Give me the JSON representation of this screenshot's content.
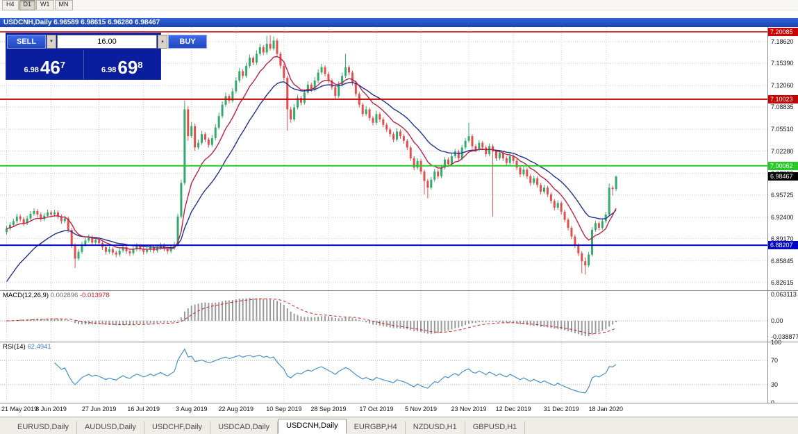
{
  "toolbar": {
    "timeframes": [
      "H4",
      "D1",
      "W1",
      "MN"
    ],
    "active": "D1"
  },
  "window": {
    "title": "USDCNH,Daily  6.96589 6.98615 6.96280 6.98467"
  },
  "trade_panel": {
    "sell_label": "SELL",
    "buy_label": "BUY",
    "volume": "16.00",
    "bid_main": "6.98",
    "bid_big": "46",
    "bid_sup": "7",
    "ask_main": "6.98",
    "ask_big": "69",
    "ask_sup": "8"
  },
  "chart": {
    "price_axis": [
      {
        "label": "7.18620",
        "value": 7.1862
      },
      {
        "label": "7.15390",
        "value": 7.1539
      },
      {
        "label": "7.12060",
        "value": 7.1206
      },
      {
        "label": "7.08835",
        "value": 7.08835
      },
      {
        "label": "7.05510",
        "value": 7.0551
      },
      {
        "label": "7.02280",
        "value": 7.0228
      },
      {
        "label": "6.98950",
        "value": 6.9895
      },
      {
        "label": "6.95725",
        "value": 6.95725
      },
      {
        "label": "6.92400",
        "value": 6.924
      },
      {
        "label": "6.89170",
        "value": 6.8917
      },
      {
        "label": "6.85845",
        "value": 6.85845
      },
      {
        "label": "6.82615",
        "value": 6.82615
      }
    ],
    "levels": [
      {
        "label": "7.20085",
        "value": 7.20085,
        "color": "#cc0000",
        "width": 1.5
      },
      {
        "label": "7.10023",
        "value": 7.10023,
        "color": "#c40000",
        "width": 2
      },
      {
        "label": "7.00062",
        "value": 7.00062,
        "color": "#22cc22",
        "width": 2
      },
      {
        "label": "6.88207",
        "value": 6.88207,
        "color": "#0000cc",
        "width": 2
      }
    ],
    "current_price": {
      "label": "6.98467",
      "value": 6.98467,
      "bg": "#000000"
    }
  },
  "indicators": {
    "macd": {
      "title": "MACD(12,26,9)",
      "value_main": "0.002896",
      "value_signal": "-0.013978",
      "axis": [
        {
          "label": "0.063113",
          "value": 0.063113
        },
        {
          "label": "0.00",
          "value": 0
        },
        {
          "label": "-0.038877",
          "value": -0.038877
        }
      ]
    },
    "rsi": {
      "title": "RSI(14)",
      "value": "62.4941",
      "axis": [
        {
          "label": "100",
          "value": 100
        },
        {
          "label": "70",
          "value": 70
        },
        {
          "label": "30",
          "value": 30
        },
        {
          "label": "0",
          "value": 0
        }
      ],
      "guides": [
        70,
        30
      ]
    }
  },
  "tabs": [
    {
      "label": "EURUSD,Daily",
      "active": false
    },
    {
      "label": "AUDUSD,Daily",
      "active": false
    },
    {
      "label": "USDCHF,Daily",
      "active": false
    },
    {
      "label": "USDCAD,Daily",
      "active": false
    },
    {
      "label": "USDCNH,Daily",
      "active": true
    },
    {
      "label": "EURGBP,H4",
      "active": false
    },
    {
      "label": "NZDUSD,H1",
      "active": false
    },
    {
      "label": "GBPUSD,H1",
      "active": false
    }
  ],
  "chart_data": {
    "type": "candlestick",
    "title": "USDCNH, Daily",
    "ylim": [
      6.8147,
      7.208
    ],
    "colors": {
      "up": "#33aa6c",
      "down": "#e04e4e",
      "ma_fast": "#bb2244",
      "ma_slow": "#20318f",
      "macd_hist": "#9a9a9a",
      "macd_signal": "#cc2222",
      "rsi_line": "#4a90c8",
      "grid": "#cfcfcf"
    },
    "x_labels": [
      {
        "text": "21 May 2019",
        "bar": 0
      },
      {
        "text": "8 Jun 2019",
        "bar": 13
      },
      {
        "text": "27 Jun 2019",
        "bar": 27
      },
      {
        "text": "16 Jul 2019",
        "bar": 40
      },
      {
        "text": "3 Aug 2019",
        "bar": 54
      },
      {
        "text": "22 Aug 2019",
        "bar": 67
      },
      {
        "text": "10 Sep 2019",
        "bar": 81
      },
      {
        "text": "28 Sep 2019",
        "bar": 94
      },
      {
        "text": "17 Oct 2019",
        "bar": 108
      },
      {
        "text": "5 Nov 2019",
        "bar": 121
      },
      {
        "text": "23 Nov 2019",
        "bar": 135
      },
      {
        "text": "12 Dec 2019",
        "bar": 148
      },
      {
        "text": "31 Dec 2019",
        "bar": 162
      },
      {
        "text": "18 Jan 2020",
        "bar": 175
      }
    ],
    "ohlc": [
      [
        6.902,
        6.911,
        6.898,
        6.907
      ],
      [
        6.907,
        6.9165,
        6.904,
        6.9125
      ],
      [
        6.9125,
        6.922,
        6.9095,
        6.918
      ],
      [
        6.918,
        6.929,
        6.915,
        6.925
      ],
      [
        6.925,
        6.928,
        6.917,
        6.921
      ],
      [
        6.921,
        6.924,
        6.911,
        6.915
      ],
      [
        6.915,
        6.926,
        6.912,
        6.922
      ],
      [
        6.922,
        6.933,
        6.919,
        6.929
      ],
      [
        6.929,
        6.937,
        6.926,
        6.933
      ],
      [
        6.933,
        6.936,
        6.924,
        6.928
      ],
      [
        6.928,
        6.931,
        6.917,
        6.921
      ],
      [
        6.921,
        6.93,
        6.918,
        6.926
      ],
      [
        6.926,
        6.935,
        6.923,
        6.931
      ],
      [
        6.931,
        6.934,
        6.924,
        6.928
      ],
      [
        6.928,
        6.935,
        6.925,
        6.931
      ],
      [
        6.931,
        6.934,
        6.921,
        6.925
      ],
      [
        6.925,
        6.928,
        6.914,
        6.918
      ],
      [
        6.918,
        6.926,
        6.915,
        6.922
      ],
      [
        6.922,
        6.925,
        6.901,
        6.905
      ],
      [
        6.905,
        6.908,
        6.878,
        6.882
      ],
      [
        6.882,
        6.885,
        6.848,
        6.862
      ],
      [
        6.862,
        6.876,
        6.859,
        6.872
      ],
      [
        6.872,
        6.887,
        6.869,
        6.883
      ],
      [
        6.883,
        6.893,
        6.88,
        6.889
      ],
      [
        6.889,
        6.898,
        6.886,
        6.894
      ],
      [
        6.894,
        6.897,
        6.882,
        6.886
      ],
      [
        6.886,
        6.894,
        6.883,
        6.89
      ],
      [
        6.89,
        6.893,
        6.881,
        6.885
      ],
      [
        6.885,
        6.888,
        6.875,
        6.879
      ],
      [
        6.879,
        6.882,
        6.868,
        6.872
      ],
      [
        6.872,
        6.88,
        6.869,
        6.876
      ],
      [
        6.876,
        6.879,
        6.867,
        6.871
      ],
      [
        6.871,
        6.874,
        6.864,
        6.868
      ],
      [
        6.868,
        6.878,
        6.865,
        6.874
      ],
      [
        6.874,
        6.883,
        6.871,
        6.879
      ],
      [
        6.879,
        6.882,
        6.869,
        6.873
      ],
      [
        6.873,
        6.876,
        6.866,
        6.87
      ],
      [
        6.87,
        6.88,
        6.867,
        6.876
      ],
      [
        6.876,
        6.885,
        6.873,
        6.881
      ],
      [
        6.881,
        6.884,
        6.873,
        6.877
      ],
      [
        6.877,
        6.88,
        6.868,
        6.872
      ],
      [
        6.872,
        6.879,
        6.869,
        6.875
      ],
      [
        6.875,
        6.883,
        6.872,
        6.879
      ],
      [
        6.879,
        6.882,
        6.87,
        6.874
      ],
      [
        6.874,
        6.882,
        6.871,
        6.878
      ],
      [
        6.878,
        6.886,
        6.875,
        6.882
      ],
      [
        6.882,
        6.885,
        6.873,
        6.877
      ],
      [
        6.877,
        6.88,
        6.869,
        6.873
      ],
      [
        6.873,
        6.882,
        6.87,
        6.878
      ],
      [
        6.878,
        6.887,
        6.875,
        6.883
      ],
      [
        6.883,
        6.929,
        6.88,
        6.925
      ],
      [
        6.925,
        6.98,
        6.922,
        6.975
      ],
      [
        6.975,
        7.098,
        6.972,
        7.085
      ],
      [
        7.085,
        7.09,
        7.038,
        7.045
      ],
      [
        7.045,
        7.066,
        7.042,
        7.06
      ],
      [
        7.06,
        7.064,
        7.023,
        7.028
      ],
      [
        7.028,
        7.04,
        7.025,
        7.035
      ],
      [
        7.035,
        7.053,
        7.032,
        7.048
      ],
      [
        7.048,
        7.051,
        7.036,
        7.04
      ],
      [
        7.04,
        7.043,
        7.028,
        7.032
      ],
      [
        7.032,
        7.047,
        7.029,
        7.042
      ],
      [
        7.042,
        7.063,
        7.039,
        7.058
      ],
      [
        7.058,
        7.08,
        7.055,
        7.075
      ],
      [
        7.075,
        7.097,
        7.072,
        7.092
      ],
      [
        7.092,
        7.11,
        7.089,
        7.105
      ],
      [
        7.105,
        7.108,
        7.094,
        7.098
      ],
      [
        7.098,
        7.117,
        7.095,
        7.112
      ],
      [
        7.112,
        7.133,
        7.109,
        7.128
      ],
      [
        7.128,
        7.147,
        7.125,
        7.142
      ],
      [
        7.142,
        7.145,
        7.131,
        7.135
      ],
      [
        7.135,
        7.155,
        7.132,
        7.15
      ],
      [
        7.15,
        7.167,
        7.147,
        7.162
      ],
      [
        7.162,
        7.165,
        7.151,
        7.155
      ],
      [
        7.155,
        7.173,
        7.152,
        7.168
      ],
      [
        7.168,
        7.183,
        7.165,
        7.178
      ],
      [
        7.178,
        7.181,
        7.166,
        7.17
      ],
      [
        7.17,
        7.195,
        7.167,
        7.183
      ],
      [
        7.183,
        7.196,
        7.173,
        7.176
      ],
      [
        7.176,
        7.194,
        7.173,
        7.188
      ],
      [
        7.188,
        7.191,
        7.164,
        7.168
      ],
      [
        7.168,
        7.171,
        7.146,
        7.15
      ],
      [
        7.15,
        7.153,
        7.128,
        7.132
      ],
      [
        7.132,
        7.135,
        7.053,
        7.085
      ],
      [
        7.085,
        7.089,
        7.065,
        7.07
      ],
      [
        7.07,
        7.093,
        7.067,
        7.088
      ],
      [
        7.088,
        7.107,
        7.085,
        7.102
      ],
      [
        7.102,
        7.105,
        7.091,
        7.095
      ],
      [
        7.095,
        7.115,
        7.092,
        7.11
      ],
      [
        7.11,
        7.127,
        7.107,
        7.122
      ],
      [
        7.122,
        7.125,
        7.111,
        7.115
      ],
      [
        7.115,
        7.133,
        7.112,
        7.128
      ],
      [
        7.128,
        7.145,
        7.125,
        7.14
      ],
      [
        7.14,
        7.153,
        7.137,
        7.148
      ],
      [
        7.148,
        7.151,
        7.134,
        7.138
      ],
      [
        7.138,
        7.141,
        7.124,
        7.128
      ],
      [
        7.128,
        7.131,
        7.114,
        7.118
      ],
      [
        7.118,
        7.121,
        7.101,
        7.105
      ],
      [
        7.105,
        7.127,
        7.102,
        7.122
      ],
      [
        7.122,
        7.14,
        7.119,
        7.135
      ],
      [
        7.135,
        7.168,
        7.132,
        7.148
      ],
      [
        7.148,
        7.151,
        7.136,
        7.14
      ],
      [
        7.14,
        7.143,
        7.121,
        7.125
      ],
      [
        7.125,
        7.128,
        7.104,
        7.108
      ],
      [
        7.108,
        7.111,
        7.088,
        7.092
      ],
      [
        7.092,
        7.095,
        7.074,
        7.078
      ],
      [
        7.078,
        7.09,
        7.075,
        7.085
      ],
      [
        7.085,
        7.088,
        7.068,
        7.072
      ],
      [
        7.072,
        7.075,
        7.061,
        7.065
      ],
      [
        7.065,
        7.083,
        7.062,
        7.078
      ],
      [
        7.078,
        7.081,
        7.066,
        7.07
      ],
      [
        7.07,
        7.073,
        7.058,
        7.062
      ],
      [
        7.062,
        7.065,
        7.051,
        7.055
      ],
      [
        7.055,
        7.058,
        7.044,
        7.048
      ],
      [
        7.048,
        7.051,
        7.036,
        7.04
      ],
      [
        7.04,
        7.057,
        7.037,
        7.052
      ],
      [
        7.052,
        7.055,
        7.041,
        7.045
      ],
      [
        7.045,
        7.048,
        7.034,
        7.038
      ],
      [
        7.038,
        7.041,
        7.024,
        7.028
      ],
      [
        7.028,
        7.031,
        7.008,
        7.012
      ],
      [
        7.012,
        7.015,
        6.994,
        6.998
      ],
      [
        6.998,
        7.012,
        6.995,
        7.008
      ],
      [
        7.008,
        7.011,
        6.988,
        6.992
      ],
      [
        6.992,
        6.995,
        6.958,
        6.978
      ],
      [
        6.978,
        6.981,
        6.952,
        6.968
      ],
      [
        6.968,
        6.984,
        6.965,
        6.98
      ],
      [
        6.98,
        6.996,
        6.977,
        6.992
      ],
      [
        6.992,
        6.995,
        6.981,
        6.985
      ],
      [
        6.985,
        7.002,
        6.982,
        6.998
      ],
      [
        6.998,
        7.014,
        6.995,
        7.01
      ],
      [
        7.01,
        7.013,
        6.999,
        7.003
      ],
      [
        7.003,
        7.019,
        7.0,
        7.015
      ],
      [
        7.015,
        7.026,
        7.012,
        7.022
      ],
      [
        7.022,
        7.025,
        7.008,
        7.012
      ],
      [
        7.012,
        7.032,
        7.009,
        7.028
      ],
      [
        7.028,
        7.042,
        7.025,
        7.038
      ],
      [
        7.038,
        7.065,
        7.035,
        7.045
      ],
      [
        7.045,
        7.048,
        7.026,
        7.03
      ],
      [
        7.03,
        7.033,
        7.021,
        7.025
      ],
      [
        7.025,
        7.039,
        7.022,
        7.035
      ],
      [
        7.035,
        7.038,
        7.024,
        7.028
      ],
      [
        7.028,
        7.031,
        7.014,
        7.018
      ],
      [
        7.018,
        7.034,
        7.015,
        7.03
      ],
      [
        7.03,
        7.033,
        6.925,
        7.022
      ],
      [
        7.022,
        7.025,
        7.008,
        7.012
      ],
      [
        7.012,
        7.024,
        7.009,
        7.02
      ],
      [
        7.02,
        7.023,
        7.008,
        7.012
      ],
      [
        7.012,
        7.015,
        7.001,
        7.005
      ],
      [
        7.005,
        7.019,
        7.002,
        7.015
      ],
      [
        7.015,
        7.018,
        7.004,
        7.008
      ],
      [
        7.008,
        7.011,
        6.994,
        6.998
      ],
      [
        6.998,
        7.001,
        6.984,
        6.988
      ],
      [
        6.988,
        6.999,
        6.985,
        6.995
      ],
      [
        6.995,
        6.998,
        6.981,
        6.985
      ],
      [
        6.985,
        6.988,
        6.971,
        6.975
      ],
      [
        6.975,
        6.986,
        6.972,
        6.982
      ],
      [
        6.982,
        6.985,
        6.968,
        6.972
      ],
      [
        6.972,
        6.975,
        6.958,
        6.962
      ],
      [
        6.962,
        6.972,
        6.959,
        6.968
      ],
      [
        6.968,
        6.971,
        6.954,
        6.958
      ],
      [
        6.958,
        6.961,
        6.944,
        6.948
      ],
      [
        6.948,
        6.951,
        6.934,
        6.938
      ],
      [
        6.938,
        6.949,
        6.935,
        6.945
      ],
      [
        6.945,
        6.948,
        6.928,
        6.932
      ],
      [
        6.932,
        6.935,
        6.916,
        6.92
      ],
      [
        6.92,
        6.923,
        6.904,
        6.908
      ],
      [
        6.908,
        6.911,
        6.891,
        6.895
      ],
      [
        6.895,
        6.898,
        6.878,
        6.882
      ],
      [
        6.882,
        6.885,
        6.866,
        6.87
      ],
      [
        6.87,
        6.873,
        6.84,
        6.858
      ],
      [
        6.858,
        6.864,
        6.838,
        6.852
      ],
      [
        6.852,
        6.872,
        6.849,
        6.868
      ],
      [
        6.868,
        6.909,
        6.865,
        6.905
      ],
      [
        6.905,
        6.919,
        6.902,
        6.915
      ],
      [
        6.915,
        6.918,
        6.904,
        6.908
      ],
      [
        6.908,
        6.922,
        6.905,
        6.918
      ],
      [
        6.918,
        6.932,
        6.915,
        6.928
      ],
      [
        6.928,
        6.974,
        6.925,
        6.968
      ],
      [
        6.968,
        6.971,
        6.956,
        6.9659
      ],
      [
        6.9659,
        6.9862,
        6.9628,
        6.9847
      ]
    ]
  }
}
